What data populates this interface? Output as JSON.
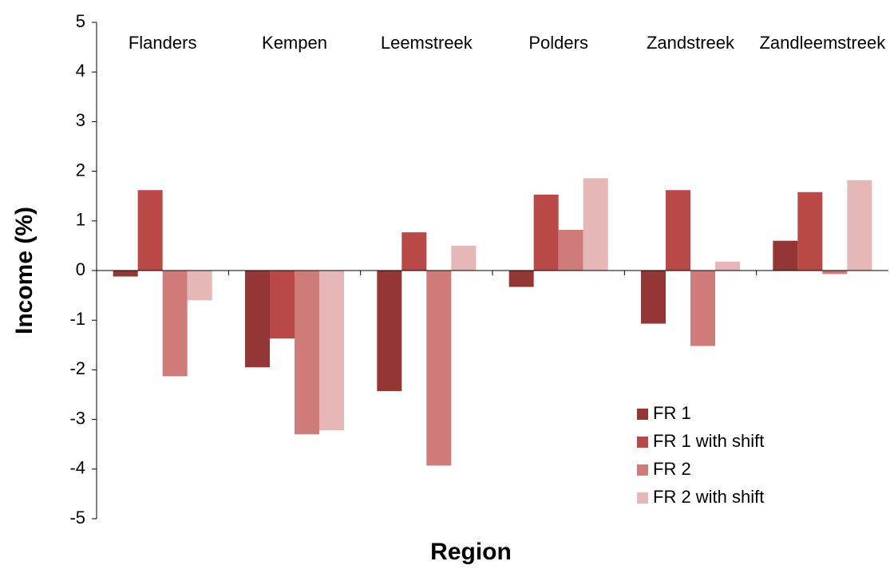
{
  "chart_data": {
    "type": "bar",
    "x_label": "Region",
    "y_label": "Income (%)",
    "categories": [
      "Flanders",
      "Kempen",
      "Leemstreek",
      "Polders",
      "Zandstreek",
      "Zandleemstreek"
    ],
    "series": [
      {
        "name": "FR 1",
        "color": "#943634",
        "values": [
          -0.12,
          -1.95,
          -2.43,
          -0.33,
          -1.07,
          0.6
        ]
      },
      {
        "name": "FR 1 with shift",
        "color": "#b94846",
        "values": [
          1.62,
          -1.37,
          0.77,
          1.53,
          1.62,
          1.58
        ]
      },
      {
        "name": "FR 2",
        "color": "#cf7b79",
        "values": [
          -2.13,
          -3.3,
          -3.93,
          0.82,
          -1.52,
          -0.07
        ]
      },
      {
        "name": "FR 2 with shift",
        "color": "#e5b8b7",
        "values": [
          -0.6,
          -3.22,
          0.5,
          1.86,
          0.18,
          1.82
        ]
      }
    ],
    "ylim": [
      -5,
      5
    ],
    "yticks": [
      -5,
      -4,
      -3,
      -2,
      -1,
      0,
      1,
      2,
      3,
      4,
      5
    ],
    "legend": "lower right"
  }
}
